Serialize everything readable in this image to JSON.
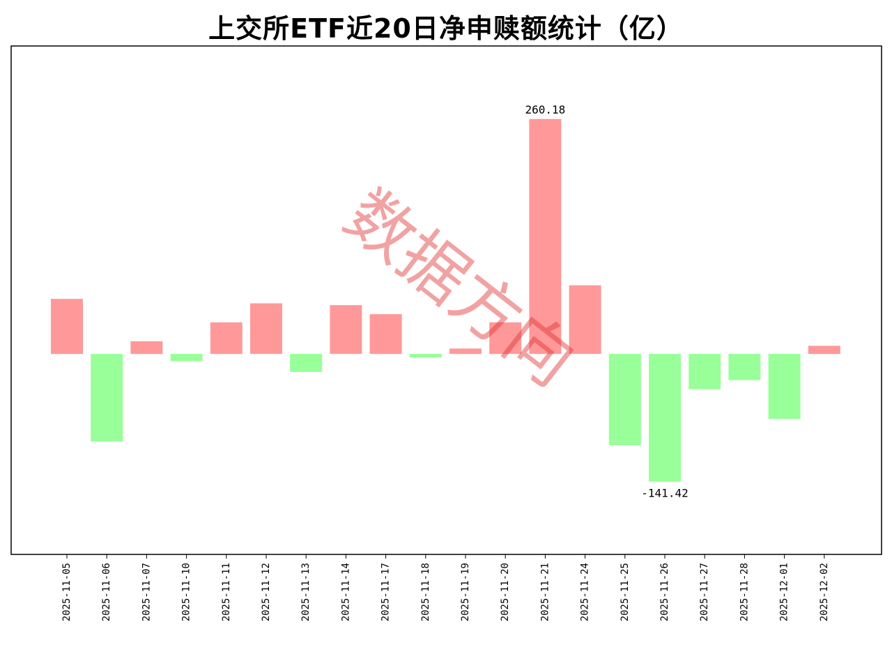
{
  "chart_data": {
    "type": "bar",
    "title": "上交所ETF近20日净申赎额统计（亿）",
    "categories": [
      "2025-11-05",
      "2025-11-06",
      "2025-11-07",
      "2025-11-10",
      "2025-11-11",
      "2025-11-12",
      "2025-11-13",
      "2025-11-14",
      "2025-11-17",
      "2025-11-18",
      "2025-11-19",
      "2025-11-20",
      "2025-11-21",
      "2025-11-24",
      "2025-11-25",
      "2025-11-26",
      "2025-11-27",
      "2025-11-28",
      "2025-12-01",
      "2025-12-02"
    ],
    "values": [
      61,
      -97,
      14,
      -8,
      35,
      56,
      -20,
      54,
      44,
      -4,
      6,
      35,
      260.18,
      76,
      -101,
      -141.42,
      -39,
      -29,
      -72,
      9
    ],
    "data_labels": [
      {
        "index": 12,
        "text": "260.18"
      },
      {
        "index": 15,
        "text": "-141.42"
      }
    ],
    "ylim": [
      -222,
      341
    ],
    "positive_color": "#ff9999",
    "negative_color": "#99ff99",
    "y_ticks_shown": false,
    "grid": false
  },
  "watermark": {
    "text": "数据方向",
    "color": "#e03030"
  }
}
